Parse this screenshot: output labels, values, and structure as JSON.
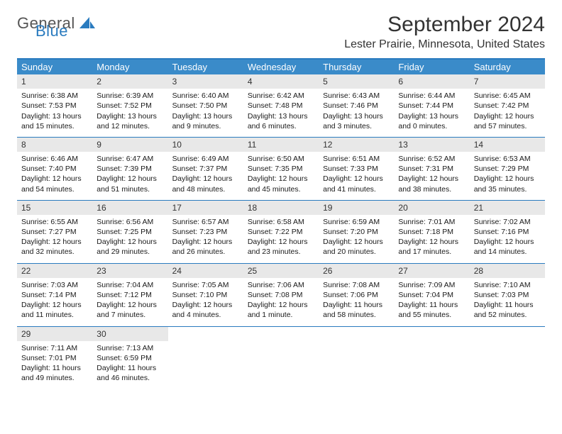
{
  "logo": {
    "text1": "General",
    "text2": "Blue"
  },
  "title": "September 2024",
  "location": "Lester Prairie, Minnesota, United States",
  "colors": {
    "header_bg": "#3a8bc9",
    "border": "#2a7bbf",
    "daynum_bg": "#e8e8e8",
    "text": "#1a1a1a"
  },
  "day_names": [
    "Sunday",
    "Monday",
    "Tuesday",
    "Wednesday",
    "Thursday",
    "Friday",
    "Saturday"
  ],
  "weeks": [
    [
      {
        "n": "1",
        "sr": "6:38 AM",
        "ss": "7:53 PM",
        "dl": "13 hours and 15 minutes."
      },
      {
        "n": "2",
        "sr": "6:39 AM",
        "ss": "7:52 PM",
        "dl": "13 hours and 12 minutes."
      },
      {
        "n": "3",
        "sr": "6:40 AM",
        "ss": "7:50 PM",
        "dl": "13 hours and 9 minutes."
      },
      {
        "n": "4",
        "sr": "6:42 AM",
        "ss": "7:48 PM",
        "dl": "13 hours and 6 minutes."
      },
      {
        "n": "5",
        "sr": "6:43 AM",
        "ss": "7:46 PM",
        "dl": "13 hours and 3 minutes."
      },
      {
        "n": "6",
        "sr": "6:44 AM",
        "ss": "7:44 PM",
        "dl": "13 hours and 0 minutes."
      },
      {
        "n": "7",
        "sr": "6:45 AM",
        "ss": "7:42 PM",
        "dl": "12 hours and 57 minutes."
      }
    ],
    [
      {
        "n": "8",
        "sr": "6:46 AM",
        "ss": "7:40 PM",
        "dl": "12 hours and 54 minutes."
      },
      {
        "n": "9",
        "sr": "6:47 AM",
        "ss": "7:39 PM",
        "dl": "12 hours and 51 minutes."
      },
      {
        "n": "10",
        "sr": "6:49 AM",
        "ss": "7:37 PM",
        "dl": "12 hours and 48 minutes."
      },
      {
        "n": "11",
        "sr": "6:50 AM",
        "ss": "7:35 PM",
        "dl": "12 hours and 45 minutes."
      },
      {
        "n": "12",
        "sr": "6:51 AM",
        "ss": "7:33 PM",
        "dl": "12 hours and 41 minutes."
      },
      {
        "n": "13",
        "sr": "6:52 AM",
        "ss": "7:31 PM",
        "dl": "12 hours and 38 minutes."
      },
      {
        "n": "14",
        "sr": "6:53 AM",
        "ss": "7:29 PM",
        "dl": "12 hours and 35 minutes."
      }
    ],
    [
      {
        "n": "15",
        "sr": "6:55 AM",
        "ss": "7:27 PM",
        "dl": "12 hours and 32 minutes."
      },
      {
        "n": "16",
        "sr": "6:56 AM",
        "ss": "7:25 PM",
        "dl": "12 hours and 29 minutes."
      },
      {
        "n": "17",
        "sr": "6:57 AM",
        "ss": "7:23 PM",
        "dl": "12 hours and 26 minutes."
      },
      {
        "n": "18",
        "sr": "6:58 AM",
        "ss": "7:22 PM",
        "dl": "12 hours and 23 minutes."
      },
      {
        "n": "19",
        "sr": "6:59 AM",
        "ss": "7:20 PM",
        "dl": "12 hours and 20 minutes."
      },
      {
        "n": "20",
        "sr": "7:01 AM",
        "ss": "7:18 PM",
        "dl": "12 hours and 17 minutes."
      },
      {
        "n": "21",
        "sr": "7:02 AM",
        "ss": "7:16 PM",
        "dl": "12 hours and 14 minutes."
      }
    ],
    [
      {
        "n": "22",
        "sr": "7:03 AM",
        "ss": "7:14 PM",
        "dl": "12 hours and 11 minutes."
      },
      {
        "n": "23",
        "sr": "7:04 AM",
        "ss": "7:12 PM",
        "dl": "12 hours and 7 minutes."
      },
      {
        "n": "24",
        "sr": "7:05 AM",
        "ss": "7:10 PM",
        "dl": "12 hours and 4 minutes."
      },
      {
        "n": "25",
        "sr": "7:06 AM",
        "ss": "7:08 PM",
        "dl": "12 hours and 1 minute."
      },
      {
        "n": "26",
        "sr": "7:08 AM",
        "ss": "7:06 PM",
        "dl": "11 hours and 58 minutes."
      },
      {
        "n": "27",
        "sr": "7:09 AM",
        "ss": "7:04 PM",
        "dl": "11 hours and 55 minutes."
      },
      {
        "n": "28",
        "sr": "7:10 AM",
        "ss": "7:03 PM",
        "dl": "11 hours and 52 minutes."
      }
    ],
    [
      {
        "n": "29",
        "sr": "7:11 AM",
        "ss": "7:01 PM",
        "dl": "11 hours and 49 minutes."
      },
      {
        "n": "30",
        "sr": "7:13 AM",
        "ss": "6:59 PM",
        "dl": "11 hours and 46 minutes."
      },
      null,
      null,
      null,
      null,
      null
    ]
  ],
  "labels": {
    "sunrise": "Sunrise: ",
    "sunset": "Sunset: ",
    "daylight": "Daylight: "
  }
}
